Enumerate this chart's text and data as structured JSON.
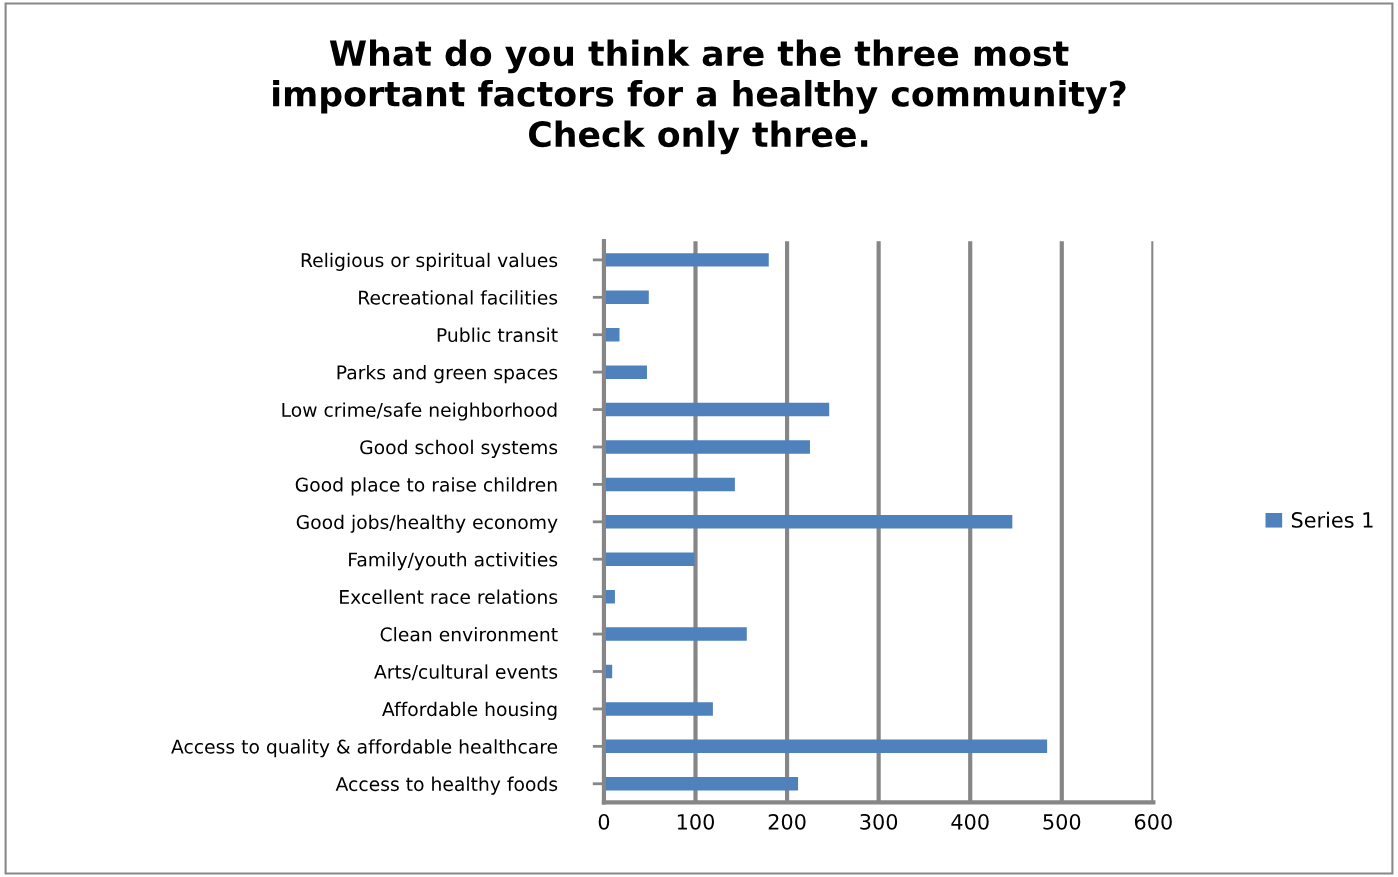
{
  "chart_data": {
    "type": "bar",
    "orientation": "horizontal",
    "title": "What do you think are the three most\nimportant factors for a healthy community?\nCheck only three.",
    "categories": [
      "Religious or spiritual values",
      "Recreational facilities",
      "Public transit",
      "Parks and green spaces",
      "Low crime/safe neighborhood",
      "Good school systems",
      "Good place to raise children",
      "Good jobs/healthy economy",
      "Family/youth activities",
      "Excellent race relations",
      "Clean environment",
      "Arts/cultural events",
      "Affordable housing",
      "Access to quality & affordable healthcare",
      "Access to healthy foods"
    ],
    "series": [
      {
        "name": "Series 1",
        "color": "#4f81bd",
        "values": [
          180,
          49,
          17,
          47,
          246,
          225,
          143,
          446,
          99,
          12,
          156,
          9,
          119,
          484,
          212
        ]
      }
    ],
    "xlim": [
      0,
      600
    ],
    "xticks": [
      0,
      100,
      200,
      300,
      400,
      500,
      600
    ],
    "grid": "x",
    "legend": "right"
  }
}
